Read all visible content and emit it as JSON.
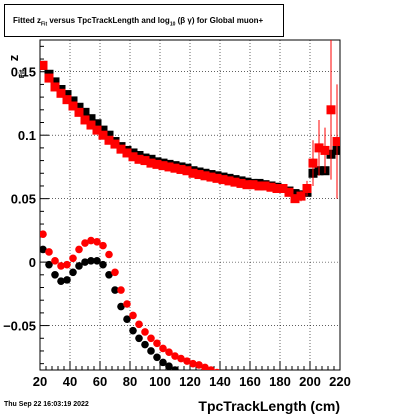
{
  "title": "Fitted  z_Fit  versus TpcTrackLength and log10(β γ) for Global muon+",
  "title_parts": {
    "pre": "Fitted  z",
    "sub1": "Fit",
    "mid": "  versus TpcTrackLength and log",
    "sub2": "10",
    "post": " (β  γ) for Global muon+"
  },
  "date_stamp": "Thu Sep 22 16:03:19 2022",
  "chart_data": {
    "type": "scatter",
    "title": "Fitted  z_Fit  versus TpcTrackLength and log10(β γ) for Global muon+",
    "xlabel": "TpcTrackLength (cm)",
    "ylabel": "z",
    "ylabel_sub": "Fit",
    "xlim": [
      20,
      220
    ],
    "ylim": [
      -0.085,
      0.175
    ],
    "x_ticks": [
      20,
      40,
      60,
      80,
      100,
      120,
      140,
      160,
      180,
      200,
      220
    ],
    "x_tick_labels": [
      "20",
      "40",
      "60",
      "80",
      "100",
      "120",
      "140",
      "160",
      "180",
      "200",
      "220"
    ],
    "y_ticks": [
      -0.05,
      0,
      0.05,
      0.1,
      0.15
    ],
    "y_tick_labels": [
      "−0.05",
      "0",
      "0.05",
      "0.1",
      "0.15"
    ],
    "grid": true,
    "series": [
      {
        "marker": "square",
        "color": "#000000",
        "x": [
          22,
          26,
          30,
          34,
          38,
          42,
          46,
          50,
          54,
          58,
          62,
          66,
          70,
          74,
          78,
          82,
          86,
          90,
          94,
          98,
          102,
          106,
          110,
          114,
          118,
          122,
          126,
          130,
          134,
          138,
          142,
          146,
          150,
          154,
          158,
          162,
          166,
          170,
          174,
          178,
          182,
          186,
          190,
          194,
          198,
          202,
          206,
          210,
          214,
          218
        ],
        "y": [
          0.155,
          0.148,
          0.142,
          0.136,
          0.132,
          0.127,
          0.122,
          0.118,
          0.113,
          0.109,
          0.104,
          0.1,
          0.095,
          0.091,
          0.088,
          0.086,
          0.084,
          0.082,
          0.081,
          0.079,
          0.078,
          0.077,
          0.076,
          0.075,
          0.074,
          0.072,
          0.071,
          0.07,
          0.069,
          0.068,
          0.067,
          0.066,
          0.065,
          0.064,
          0.063,
          0.062,
          0.062,
          0.061,
          0.06,
          0.059,
          0.058,
          0.056,
          0.054,
          0.053,
          0.055,
          0.07,
          0.072,
          0.072,
          0.085,
          0.088
        ]
      },
      {
        "marker": "square",
        "color": "#ff0000",
        "x": [
          22,
          26,
          30,
          34,
          38,
          42,
          46,
          50,
          54,
          58,
          62,
          66,
          70,
          74,
          78,
          82,
          86,
          90,
          94,
          98,
          102,
          106,
          110,
          114,
          118,
          122,
          126,
          130,
          134,
          138,
          142,
          146,
          150,
          154,
          158,
          162,
          166,
          170,
          174,
          178,
          182,
          186,
          190,
          194,
          198,
          202,
          206,
          210,
          214,
          218
        ],
        "y": [
          0.155,
          0.145,
          0.138,
          0.133,
          0.128,
          0.123,
          0.118,
          0.112,
          0.108,
          0.104,
          0.1,
          0.096,
          0.093,
          0.089,
          0.086,
          0.083,
          0.081,
          0.08,
          0.078,
          0.077,
          0.076,
          0.075,
          0.074,
          0.073,
          0.072,
          0.07,
          0.069,
          0.068,
          0.067,
          0.066,
          0.065,
          0.064,
          0.063,
          0.062,
          0.061,
          0.061,
          0.06,
          0.06,
          0.059,
          0.058,
          0.058,
          0.055,
          0.05,
          0.052,
          0.058,
          0.078,
          0.09,
          0.088,
          0.12,
          0.095
        ],
        "err": [
          0,
          0,
          0,
          0,
          0,
          0,
          0,
          0,
          0,
          0,
          0,
          0,
          0,
          0,
          0,
          0,
          0,
          0,
          0,
          0,
          0,
          0,
          0,
          0,
          0,
          0,
          0,
          0,
          0,
          0,
          0,
          0,
          0,
          0,
          0,
          0,
          0,
          0,
          0,
          0,
          0,
          0,
          0.003,
          0.004,
          0.006,
          0.018,
          0.022,
          0.018,
          0.055,
          0.045
        ]
      },
      {
        "marker": "circle",
        "color": "#000000",
        "x": [
          22,
          26,
          30,
          34,
          38,
          42,
          46,
          50,
          54,
          58,
          62,
          66,
          70,
          74,
          78,
          82,
          86,
          90,
          94,
          98,
          102,
          106,
          110,
          114,
          118
        ],
        "y": [
          0.01,
          -0.002,
          -0.01,
          -0.015,
          -0.014,
          -0.008,
          -0.003,
          0.0,
          0.001,
          0.001,
          -0.002,
          -0.01,
          -0.022,
          -0.035,
          -0.045,
          -0.054,
          -0.06,
          -0.065,
          -0.07,
          -0.075,
          -0.079,
          -0.082,
          -0.085,
          -0.088,
          -0.091
        ]
      },
      {
        "marker": "circle",
        "color": "#ff0000",
        "x": [
          22,
          26,
          30,
          34,
          38,
          42,
          46,
          50,
          54,
          58,
          62,
          66,
          70,
          74,
          78,
          82,
          86,
          90,
          94,
          98,
          102,
          106,
          110,
          114,
          118,
          122,
          126,
          130,
          134,
          138
        ],
        "y": [
          0.022,
          0.008,
          0.001,
          -0.003,
          -0.002,
          0.003,
          0.01,
          0.015,
          0.017,
          0.016,
          0.013,
          0.006,
          -0.008,
          -0.022,
          -0.033,
          -0.042,
          -0.049,
          -0.055,
          -0.06,
          -0.064,
          -0.068,
          -0.071,
          -0.074,
          -0.076,
          -0.078,
          -0.08,
          -0.081,
          -0.083,
          -0.085,
          -0.087
        ]
      }
    ]
  }
}
